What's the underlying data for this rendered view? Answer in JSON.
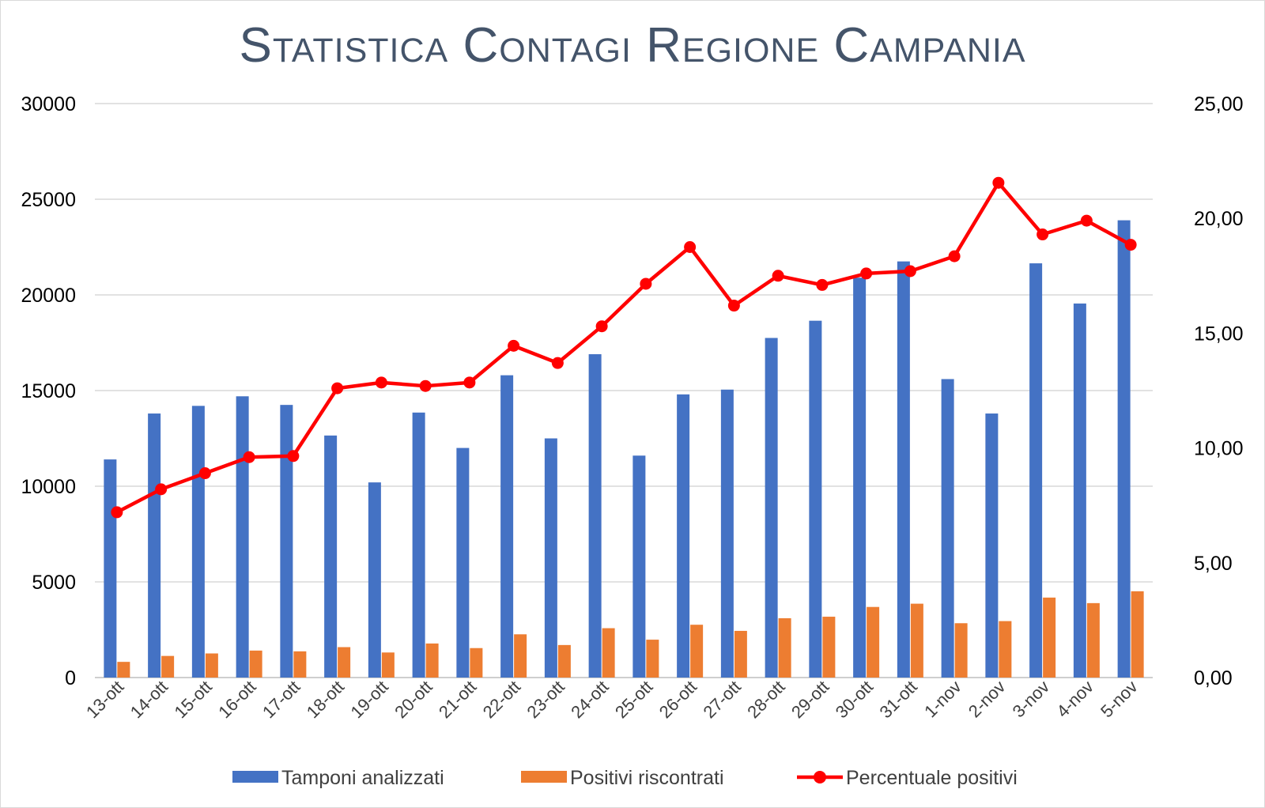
{
  "chart_data": {
    "type": "bar",
    "title": "Statistica Contagi Regione Campania",
    "categories": [
      "13-ott",
      "14-ott",
      "15-ott",
      "16-ott",
      "17-ott",
      "18-ott",
      "19-ott",
      "20-ott",
      "21-ott",
      "22-ott",
      "23-ott",
      "24-ott",
      "25-ott",
      "26-ott",
      "27-ott",
      "28-ott",
      "29-ott",
      "30-ott",
      "31-ott",
      "1-nov",
      "2-nov",
      "3-nov",
      "4-nov",
      "5-nov"
    ],
    "series": [
      {
        "name": "Tamponi analizzati",
        "type": "bar",
        "axis": "left",
        "color": "#4472c4",
        "values": [
          11400,
          13800,
          14200,
          14700,
          14250,
          12650,
          10200,
          13850,
          12000,
          15800,
          12500,
          16900,
          11600,
          14800,
          15050,
          17750,
          18650,
          20900,
          21750,
          15600,
          13800,
          21650,
          19550,
          23900
        ]
      },
      {
        "name": "Positivi riscontrati",
        "type": "bar",
        "axis": "left",
        "color": "#ed7d31",
        "values": [
          820,
          1130,
          1260,
          1410,
          1370,
          1590,
          1310,
          1780,
          1540,
          2260,
          1700,
          2580,
          1980,
          2760,
          2440,
          3100,
          3180,
          3690,
          3860,
          2840,
          2950,
          4180,
          3890,
          4510
        ]
      },
      {
        "name": "Percentuale positivi",
        "type": "line",
        "axis": "right",
        "color": "#ff0000",
        "values": [
          7.2,
          8.2,
          8.9,
          9.6,
          9.65,
          12.6,
          12.85,
          12.7,
          12.85,
          14.45,
          13.7,
          15.3,
          17.15,
          18.75,
          16.2,
          17.5,
          17.1,
          17.6,
          17.7,
          18.35,
          21.55,
          19.3,
          19.9,
          18.85
        ]
      }
    ],
    "y_left": {
      "ylim": [
        0,
        30000
      ],
      "ticks": [
        "0",
        "5000",
        "10000",
        "15000",
        "20000",
        "25000",
        "30000"
      ]
    },
    "y_right": {
      "ylim": [
        0,
        25
      ],
      "ticks": [
        "0,00",
        "5,00",
        "10,00",
        "15,00",
        "20,00",
        "25,00"
      ]
    },
    "grid": true,
    "legend_position": "bottom"
  }
}
